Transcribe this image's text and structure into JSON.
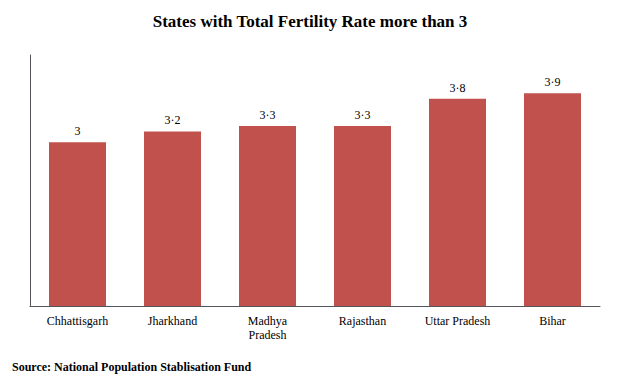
{
  "chart_data": {
    "type": "bar",
    "title": "States with Total Fertility Rate more than 3",
    "categories": [
      "Chhattisgarh",
      "Jharkhand",
      "Madhya\nPradesh",
      "Rajasthan",
      "Uttar Pradesh",
      "Bihar"
    ],
    "values": [
      3.0,
      3.2,
      3.3,
      3.3,
      3.8,
      3.9
    ],
    "value_labels": [
      "3",
      "3·2",
      "3·3",
      "3·3",
      "3·8",
      "3·9"
    ],
    "data_labels": true,
    "color": "#c0514d",
    "ylim": [
      0,
      4.6
    ],
    "grid": false,
    "tick_labels": "x",
    "annotations": [
      "Source: National Population Stablisation Fund"
    ]
  }
}
